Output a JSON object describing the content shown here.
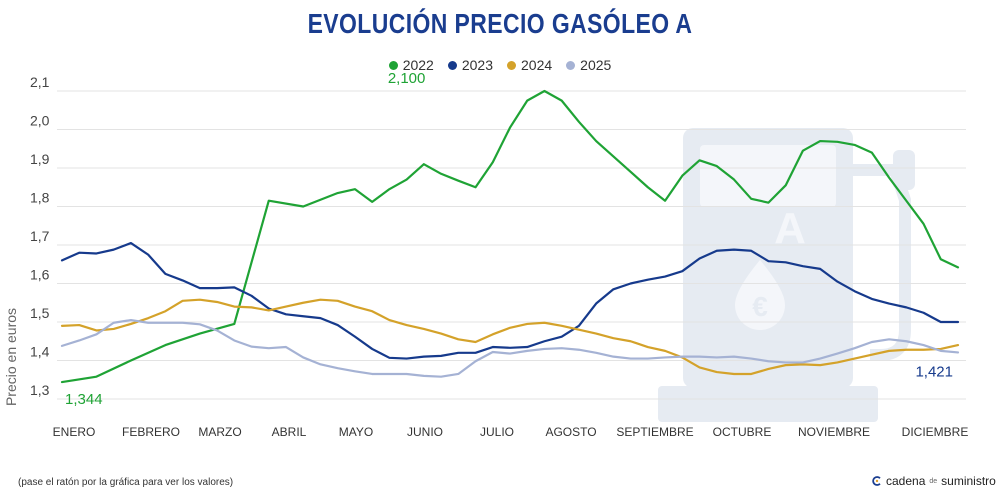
{
  "title": "EVOLUCIÓN PRECIO GASÓLEO A",
  "footnote": "(pase el ratón por la gráfica para ver los valores)",
  "brand": {
    "part1": "cadena",
    "part2": "de",
    "part3": "suministro"
  },
  "colors": {
    "2022": "#1fa335",
    "2023": "#163a8c",
    "2024": "#d4a22a",
    "2025": "#a5b2d4",
    "title": "#1a3d8f",
    "grid": "#e3e3e3",
    "watermark": "#e6ebf2"
  },
  "chart_data": {
    "type": "line",
    "ylabel": "Precio en euros",
    "ylim": [
      1.3,
      2.1
    ],
    "yticks": [
      1.3,
      1.4,
      1.5,
      1.6,
      1.7,
      1.8,
      1.9,
      2.0,
      2.1
    ],
    "ytick_labels": [
      "1,3",
      "1,4",
      "1,5",
      "1,6",
      "1,7",
      "1,8",
      "1,9",
      "2,0",
      "2,1"
    ],
    "grid": true,
    "legend_position": "top-center",
    "categories": [
      "ENERO",
      "FEBRERO",
      "MARZO",
      "ABRIL",
      "MAYO",
      "JUNIO",
      "JULIO",
      "AGOSTO",
      "SEPTIEMBRE",
      "OCTUBRE",
      "NOVIEMBRE",
      "DICIEMBRE"
    ],
    "x_domain": [
      0,
      52
    ],
    "series": [
      {
        "name": "2022",
        "color": "#1fa335",
        "x": [
          0,
          2,
          4,
          6,
          8,
          10,
          12,
          14,
          16,
          17,
          18,
          19,
          20,
          21,
          22,
          23,
          24,
          25,
          26,
          27,
          28,
          29,
          30,
          31,
          32,
          33,
          34,
          35,
          36,
          37,
          38,
          39,
          40,
          41,
          42,
          43,
          44,
          45,
          46,
          47,
          48,
          49,
          50
        ],
        "values": [
          1.344,
          1.358,
          1.4,
          1.44,
          1.47,
          1.495,
          1.815,
          1.8,
          1.835,
          1.845,
          1.812,
          1.845,
          1.87,
          1.91,
          1.885,
          1.867,
          1.85,
          1.915,
          2.005,
          2.075,
          2.1,
          2.075,
          2.02,
          1.97,
          1.93,
          1.89,
          1.85,
          1.815,
          1.88,
          1.92,
          1.905,
          1.87,
          1.82,
          1.81,
          1.855,
          1.945,
          1.97,
          1.968,
          1.96,
          1.94,
          1.875,
          1.815,
          1.755
        ],
        "x_end": [
          51,
          52
        ],
        "values_end": [
          1.663,
          1.642
        ]
      },
      {
        "name": "2023",
        "color": "#163a8c",
        "x": [
          0,
          1,
          2,
          3,
          4,
          5,
          6,
          7,
          8,
          9,
          10,
          11,
          12,
          13,
          14,
          15,
          16,
          17,
          18,
          19,
          20,
          21,
          22,
          23,
          24,
          25,
          26,
          27,
          28,
          29,
          30,
          31,
          32,
          33,
          34,
          35,
          36,
          37,
          38,
          39,
          40,
          41,
          42,
          43,
          44,
          45,
          46,
          47,
          48,
          49,
          50,
          51,
          52
        ],
        "values": [
          1.66,
          1.68,
          1.678,
          1.688,
          1.705,
          1.675,
          1.625,
          1.608,
          1.588,
          1.588,
          1.59,
          1.568,
          1.535,
          1.52,
          1.515,
          1.51,
          1.492,
          1.462,
          1.43,
          1.407,
          1.405,
          1.41,
          1.412,
          1.42,
          1.42,
          1.435,
          1.433,
          1.435,
          1.45,
          1.462,
          1.49,
          1.548,
          1.585,
          1.6,
          1.61,
          1.618,
          1.632,
          1.665,
          1.685,
          1.688,
          1.685,
          1.658,
          1.655,
          1.645,
          1.638,
          1.605,
          1.58,
          1.56,
          1.548,
          1.538,
          1.524,
          1.5,
          1.5
        ],
        "end_value": 1.421
      },
      {
        "name": "2024",
        "color": "#d4a22a",
        "x": [
          0,
          1,
          2,
          3,
          4,
          5,
          6,
          7,
          8,
          9,
          10,
          11,
          12,
          13,
          14,
          15,
          16,
          17,
          18,
          19,
          20,
          21,
          22,
          23,
          24,
          25,
          26,
          27,
          28,
          29,
          30,
          31,
          32,
          33,
          34,
          35,
          36,
          37,
          38,
          39,
          40,
          41,
          42,
          43,
          44,
          45,
          46,
          47,
          48,
          49,
          50,
          51,
          52
        ],
        "values": [
          1.49,
          1.492,
          1.478,
          1.482,
          1.495,
          1.51,
          1.528,
          1.555,
          1.558,
          1.552,
          1.54,
          1.538,
          1.53,
          1.54,
          1.55,
          1.558,
          1.555,
          1.54,
          1.528,
          1.505,
          1.492,
          1.482,
          1.47,
          1.455,
          1.448,
          1.468,
          1.485,
          1.495,
          1.498,
          1.49,
          1.48,
          1.47,
          1.458,
          1.45,
          1.435,
          1.425,
          1.408,
          1.382,
          1.37,
          1.365,
          1.365,
          1.378,
          1.388,
          1.39,
          1.388,
          1.395,
          1.405,
          1.415,
          1.425,
          1.428,
          1.428,
          1.43,
          1.44
        ]
      },
      {
        "name": "2025",
        "color": "#a5b2d4",
        "x": [
          0,
          1,
          2,
          3,
          4,
          5,
          6,
          7,
          8,
          9,
          10,
          11,
          12,
          13,
          14,
          15,
          16,
          17,
          18,
          19,
          20,
          21,
          22,
          23,
          24,
          25,
          26,
          27,
          28,
          29,
          30,
          31,
          32,
          33,
          34,
          35,
          36,
          37,
          38,
          39,
          40,
          41,
          42,
          43,
          44,
          45,
          46,
          47,
          48,
          49,
          50,
          51,
          52
        ],
        "values": [
          1.438,
          1.452,
          1.468,
          1.498,
          1.505,
          1.498,
          1.498,
          1.498,
          1.494,
          1.478,
          1.452,
          1.436,
          1.432,
          1.435,
          1.408,
          1.39,
          1.38,
          1.372,
          1.365,
          1.365,
          1.365,
          1.36,
          1.358,
          1.365,
          1.398,
          1.422,
          1.418,
          1.425,
          1.43,
          1.432,
          1.428,
          1.42,
          1.41,
          1.405,
          1.405,
          1.408,
          1.41,
          1.41,
          1.408,
          1.41,
          1.405,
          1.398,
          1.395,
          1.395,
          1.405,
          1.418,
          1.432,
          1.448,
          1.455,
          1.45,
          1.44,
          1.425,
          1.421
        ]
      }
    ],
    "annotations": [
      {
        "text": "1,344",
        "series": "2022",
        "x": 0,
        "y": 1.344
      },
      {
        "text": "2,100",
        "series": "2022",
        "x": 20,
        "y": 2.1
      },
      {
        "text": "1,421",
        "series": "2025",
        "x": 52,
        "y": 1.421
      }
    ]
  }
}
